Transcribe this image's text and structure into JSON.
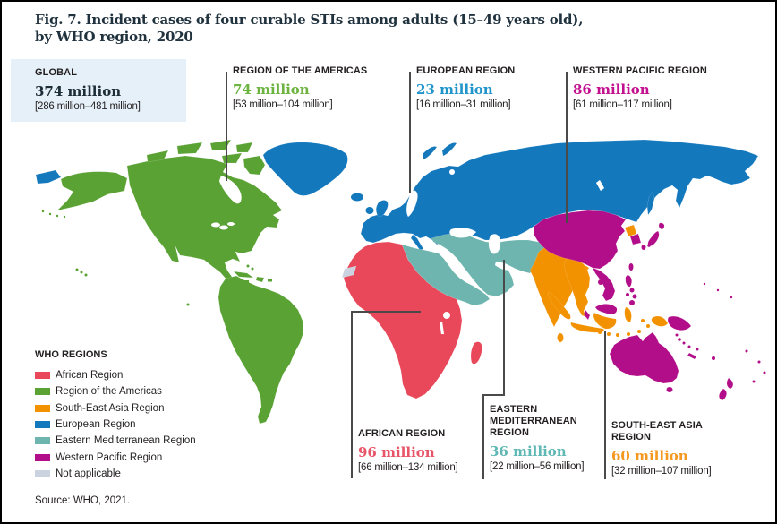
{
  "title": {
    "line1": "Fig. 7. Incident cases of four curable STIs among adults (15–49 years old),",
    "line2": "by WHO region, 2020"
  },
  "source": "Source: WHO, 2021.",
  "global": {
    "label": "GLOBAL",
    "value": "374 million",
    "range": "[286 million–481 million]"
  },
  "callouts": {
    "americas": {
      "label": "REGION OF THE AMERICAS",
      "value": "74 million",
      "range": "[53 million–104 million]",
      "color": "#6cb33f"
    },
    "european": {
      "label": "EUROPEAN REGION",
      "value": "23 million",
      "range": "[16 million–31 million]",
      "color": "#2095cb"
    },
    "wpacific": {
      "label": "WESTERN PACIFIC REGION",
      "value": "86 million",
      "range": "[61 million–117 million]",
      "color": "#c2108f"
    },
    "african": {
      "label": "AFRICAN REGION",
      "value": "96 million",
      "range": "[66 million–134 million]",
      "color": "#e85568"
    },
    "emed": {
      "label": "EASTERN MEDITERRANEAN REGION",
      "value": "36 million",
      "range": "[22 million–56 million]",
      "color": "#5fb8b4"
    },
    "seasia": {
      "label": "SOUTH-EAST ASIA REGION",
      "value": "60 million",
      "range": "[32 million–107 million]",
      "color": "#f5981f"
    }
  },
  "legend": {
    "title": "WHO REGIONS",
    "items": [
      {
        "label": "African Region",
        "color": "#e8485a"
      },
      {
        "label": "Region of the Americas",
        "color": "#5aa234"
      },
      {
        "label": "South-East Asia Region",
        "color": "#f39200"
      },
      {
        "label": "European Region",
        "color": "#1478bd"
      },
      {
        "label": "Eastern Mediterranean Region",
        "color": "#6db5ae"
      },
      {
        "label": "Western Pacific Region",
        "color": "#b30e89"
      },
      {
        "label": "Not applicable",
        "color": "#ccd3e0"
      }
    ]
  },
  "map_colors": {
    "african": "#e8485a",
    "americas": "#5aa234",
    "seasia": "#f39200",
    "european": "#1478bd",
    "emed": "#6db5ae",
    "wpacific": "#b30e89",
    "not_applicable": "#ccd3e0",
    "water": "#ffffff"
  },
  "chart_data": {
    "type": "map",
    "title": "Incident cases of four curable STIs among adults (15–49 years old), by WHO region, 2020",
    "unit": "million incident cases",
    "global": {
      "value": 374,
      "range": [
        286,
        481
      ]
    },
    "regions": [
      {
        "name": "African Region",
        "value": 96,
        "range": [
          66,
          134
        ]
      },
      {
        "name": "Region of the Americas",
        "value": 74,
        "range": [
          53,
          104
        ]
      },
      {
        "name": "South-East Asia Region",
        "value": 60,
        "range": [
          32,
          107
        ]
      },
      {
        "name": "European Region",
        "value": 23,
        "range": [
          16,
          31
        ]
      },
      {
        "name": "Eastern Mediterranean Region",
        "value": 36,
        "range": [
          22,
          56
        ]
      },
      {
        "name": "Western Pacific Region",
        "value": 86,
        "range": [
          61,
          117
        ]
      }
    ]
  }
}
